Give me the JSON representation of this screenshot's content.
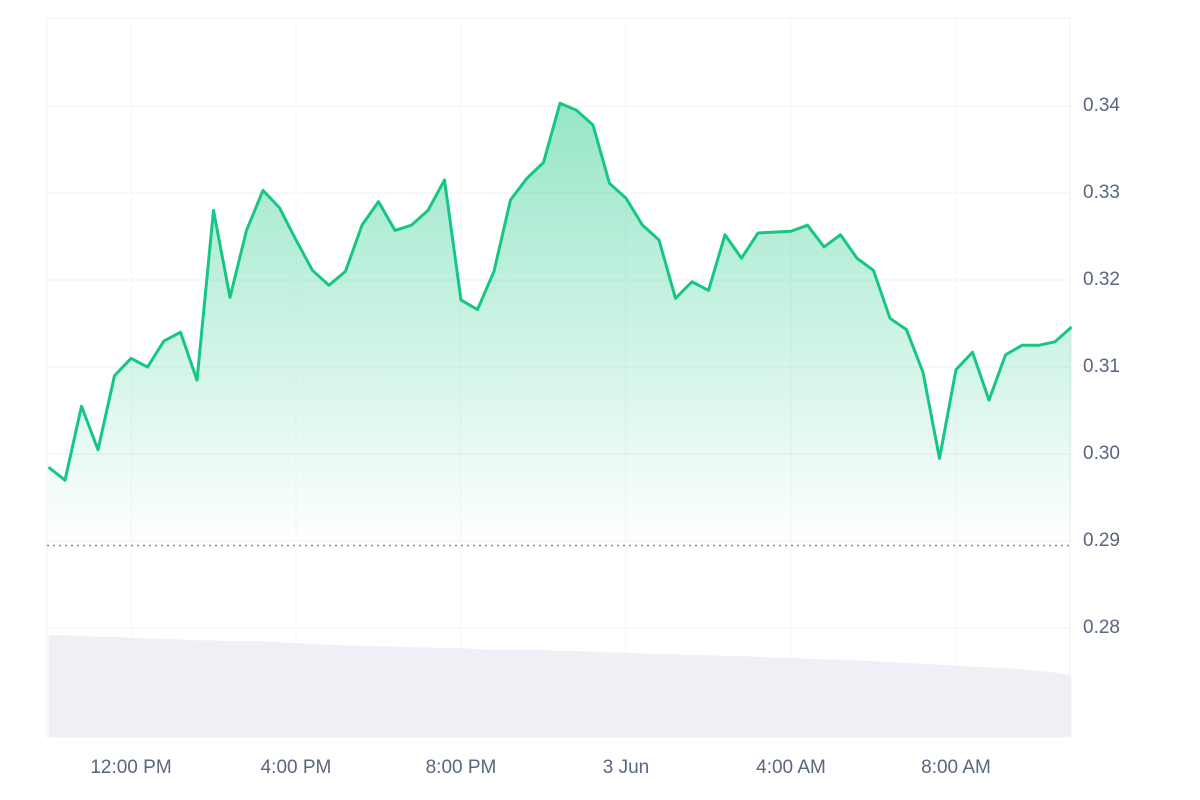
{
  "chart_data": {
    "type": "line",
    "categories": [
      null,
      null,
      null,
      null,
      null,
      "12:00 PM",
      null,
      null,
      null,
      null,
      null,
      null,
      null,
      null,
      null,
      "4:00 PM",
      null,
      null,
      null,
      null,
      null,
      null,
      null,
      null,
      null,
      "8:00 PM",
      null,
      null,
      null,
      null,
      null,
      null,
      null,
      null,
      null,
      "3 Jun",
      null,
      null,
      null,
      null,
      null,
      null,
      null,
      null,
      null,
      "4:00 AM",
      null,
      null,
      null,
      null,
      null,
      null,
      null,
      null,
      null,
      "8:00 AM",
      null,
      null,
      null,
      null,
      null,
      null,
      null
    ],
    "series": [
      {
        "color": "#16c784",
        "values": [
          0.2985,
          0.297,
          0.3055,
          0.3005,
          0.309,
          0.311,
          0.31,
          0.313,
          0.314,
          0.3085,
          0.328,
          0.318,
          0.3257,
          0.3303,
          0.3283,
          0.3246,
          0.3211,
          0.3194,
          0.321,
          0.3263,
          0.329,
          0.3257,
          0.3263,
          0.328,
          0.3315,
          0.3177,
          0.3166,
          0.321,
          0.3292,
          0.3317,
          0.3335,
          0.3403,
          0.3395,
          0.3378,
          0.3311,
          0.3294,
          0.3263,
          0.3246,
          0.3179,
          0.3198,
          0.3188,
          0.3252,
          0.3225,
          0.3254,
          0.3255,
          0.3256,
          0.3263,
          0.3238,
          0.3252,
          0.3225,
          0.3211,
          0.3156,
          0.3143,
          0.3094,
          0.2995,
          0.3097,
          0.3117,
          0.3062,
          0.3114,
          0.3125,
          0.3125,
          0.3129,
          0.3146
        ]
      },
      {
        "color": "#eef0f5",
        "values": [
          0.2792,
          0.2792,
          0.2791,
          0.279,
          0.279,
          0.2789,
          0.2788,
          0.2788,
          0.2787,
          0.2786,
          0.2786,
          0.2785,
          0.2785,
          0.2785,
          0.2784,
          0.2783,
          0.2782,
          0.2781,
          0.278,
          0.278,
          0.2779,
          0.2779,
          0.2778,
          0.2778,
          0.2777,
          0.2777,
          0.2776,
          0.2775,
          0.2775,
          0.2775,
          0.2775,
          0.2774,
          0.2774,
          0.2773,
          0.2772,
          0.2772,
          0.2771,
          0.277,
          0.277,
          0.2769,
          0.2769,
          0.2768,
          0.2768,
          0.2767,
          0.2766,
          0.2766,
          0.2765,
          0.2764,
          0.2764,
          0.2763,
          0.2762,
          0.2761,
          0.276,
          0.2759,
          0.2758,
          0.2757,
          0.2756,
          0.2755,
          0.2754,
          0.2753,
          0.2751,
          0.2749,
          0.2746
        ]
      }
    ],
    "reference_line": 0.2895,
    "ylim": [
      0.2675,
      0.3501
    ],
    "yticks": [
      0.28,
      0.29,
      {
        "value": 0.3,
        "label": "0.30"
      },
      0.31,
      0.32,
      0.33,
      0.34
    ],
    "grid": true
  }
}
